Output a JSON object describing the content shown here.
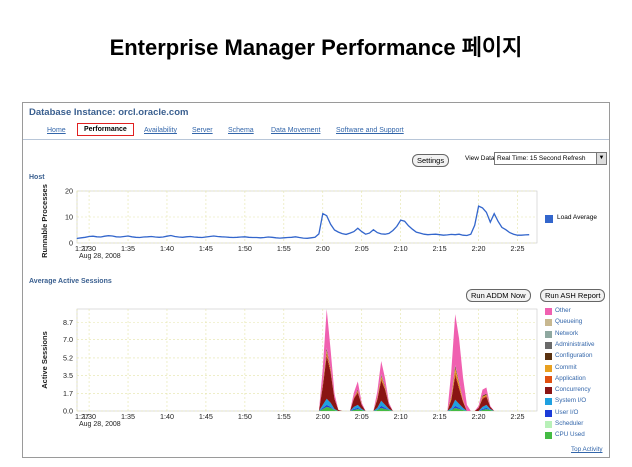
{
  "slide": {
    "title": "Enterprise Manager Performance 페이지"
  },
  "em": {
    "db_title": "Database Instance: orcl.oracle.com",
    "tabs": [
      {
        "label": "Home",
        "active": false
      },
      {
        "label": "Performance",
        "active": true
      },
      {
        "label": "Availability",
        "active": false
      },
      {
        "label": "Server",
        "active": false
      },
      {
        "label": "Schema",
        "active": false
      },
      {
        "label": "Data Movement",
        "active": false
      },
      {
        "label": "Software and Support",
        "active": false
      }
    ],
    "settings_label": "Settings",
    "view_data_label": "View Data",
    "view_data_value": "Real Time: 15 Second Refresh",
    "host_section_title": "Host",
    "aas_section_title": "Average Active Sessions",
    "run_addm_label": "Run ADDM Now",
    "run_ash_label": "Run ASH Report",
    "top_activity_label": "Top Activity",
    "colors": {
      "accent": "#3a5f8f",
      "link": "#3366aa",
      "active_tab_border": "#e02020"
    }
  },
  "chart_data": [
    {
      "type": "line",
      "title": "Host",
      "ylabel": "Runnable Processes",
      "ylim": [
        0,
        20
      ],
      "yticks": [
        "20",
        "10",
        "0"
      ],
      "xticks": [
        "1:27",
        "1:30",
        "1:35",
        "1:40",
        "1:45",
        "1:50",
        "1:55",
        "2:00",
        "2:05",
        "2:10",
        "2:15",
        "2:20",
        "2:25"
      ],
      "xsublabel": "Aug 28, 2008",
      "grid": true,
      "legend": "right",
      "series": [
        {
          "name": "Load Average",
          "color": "#3366cc",
          "x": [
            1.45,
            1.5,
            2,
            2.5,
            3,
            3.5,
            4,
            4.5,
            5,
            5.5,
            6,
            6.5,
            7,
            7.5,
            8,
            8.5,
            9,
            9.5,
            10,
            10.5,
            11,
            11.5,
            12,
            12.5,
            13,
            13.5,
            14,
            14.5,
            15,
            15.5,
            16,
            16.5,
            17,
            17.5,
            18,
            18.5,
            19,
            19.5,
            20,
            20.5,
            21,
            21.5,
            22,
            22.5,
            23,
            23.5,
            24,
            24.5,
            25,
            25.5,
            26,
            26.5,
            27,
            27.5,
            28,
            28.5,
            29,
            29.5,
            30,
            30.5,
            31,
            31.5,
            32,
            32.5,
            33,
            33.5,
            34,
            34.5,
            35,
            35.5,
            36,
            36.5,
            37,
            37.5,
            38,
            38.5,
            39,
            39.5,
            40,
            40.5,
            41,
            41.5,
            42,
            42.5,
            43,
            43.5,
            44,
            44.5,
            45,
            45.5,
            46,
            46.5,
            47,
            47.5,
            48,
            48.5,
            49,
            49.5,
            50,
            50.5,
            51,
            51.5,
            52,
            52.5,
            53,
            53.5,
            54,
            54.5,
            55,
            55.5,
            56,
            56.5,
            57,
            57.5,
            58,
            58.5,
            59,
            59.5
          ],
          "values": [
            1.6,
            1.8,
            2.0,
            2.2,
            2.5,
            2.6,
            2.4,
            2.3,
            2.6,
            2.8,
            2.7,
            2.4,
            2.3,
            2.5,
            2.7,
            2.4,
            2.2,
            2.1,
            2.3,
            2.4,
            2.5,
            2.3,
            2.2,
            2.3,
            2.6,
            2.9,
            2.5,
            2.3,
            2.2,
            2.4,
            2.5,
            2.3,
            2.2,
            2.1,
            2.3,
            2.5,
            2.7,
            2.5,
            2.4,
            2.3,
            2.2,
            2.1,
            2.2,
            2.3,
            2.4,
            2.2,
            2.1,
            2.1,
            2.0,
            2.1,
            2.3,
            2.2,
            2.0,
            1.9,
            2.0,
            2.1,
            2.2,
            2.4,
            2.1,
            1.9,
            1.8,
            2.0,
            2.2,
            3.5,
            11.3,
            10.5,
            7.2,
            5.0,
            4.2,
            3.6,
            3.3,
            3.8,
            4.4,
            5.7,
            4.4,
            3.4,
            3.8,
            5.1,
            4.0,
            3.5,
            3.4,
            3.7,
            4.8,
            6.4,
            8.8,
            8.4,
            6.6,
            5.3,
            4.2,
            3.8,
            3.4,
            3.2,
            3.3,
            3.4,
            3.2,
            3.0,
            3.1,
            3.3,
            3.2,
            3.4,
            3.0,
            2.9,
            3.4,
            6.8,
            14.2,
            13.5,
            11.8,
            8.0,
            11.3,
            8.4,
            6.0,
            5.1,
            4.0,
            3.4,
            3.0,
            3.0,
            3.1,
            3.2
          ]
        }
      ]
    },
    {
      "type": "area",
      "title": "Average Active Sessions",
      "ylabel": "Active Sessions",
      "ylim": [
        0,
        10
      ],
      "yticks": [
        "8.7",
        "7.0",
        "5.2",
        "3.5",
        "1.7",
        "0.0"
      ],
      "xticks": [
        "1:27",
        "1:30",
        "1:35",
        "1:40",
        "1:45",
        "1:50",
        "1:55",
        "2:00",
        "2:05",
        "2:10",
        "2:15",
        "2:20",
        "2:25"
      ],
      "xsublabel": "Aug 28, 2008",
      "grid": true,
      "legend": "right",
      "stacked": true,
      "x": [
        32.5,
        33,
        33.5,
        34,
        34.5,
        35,
        35.5,
        36,
        36.5,
        37,
        37.5,
        38,
        38.5,
        39,
        39.5,
        40,
        40.5,
        41,
        41.5,
        42,
        42.5,
        43,
        43.5,
        44,
        44.5,
        45,
        45.5,
        46,
        46.5,
        47,
        47.5,
        48,
        48.5,
        49,
        49.5,
        50,
        50.5,
        51,
        51.5,
        52,
        52.5,
        53,
        53.5,
        54,
        54.5,
        55,
        55.5,
        56,
        56.5,
        57,
        57.5,
        58,
        58.5,
        59
      ],
      "series": [
        {
          "name": "CPU Used",
          "color": "#44bb44",
          "values": [
            0,
            0.2,
            0.4,
            0.3,
            0.1,
            0,
            0,
            0,
            0,
            0.1,
            0.2,
            0.1,
            0,
            0,
            0,
            0.1,
            0.3,
            0.2,
            0.1,
            0,
            0,
            0,
            0,
            0,
            0,
            0,
            0,
            0,
            0,
            0,
            0,
            0,
            0,
            0,
            0.1,
            0.3,
            0.2,
            0.1,
            0,
            0,
            0,
            0,
            0.1,
            0.2,
            0.1,
            0,
            0,
            0,
            0,
            0,
            0,
            0,
            0,
            0
          ]
        },
        {
          "name": "Scheduler",
          "color": "#b8f0b8",
          "values": [
            0,
            0,
            0,
            0,
            0,
            0,
            0,
            0,
            0,
            0,
            0,
            0,
            0,
            0,
            0,
            0,
            0,
            0,
            0,
            0,
            0,
            0,
            0,
            0,
            0,
            0,
            0,
            0,
            0,
            0,
            0,
            0,
            0,
            0,
            0,
            0,
            0,
            0,
            0,
            0,
            0,
            0,
            0,
            0,
            0,
            0,
            0,
            0,
            0,
            0,
            0,
            0,
            0,
            0
          ]
        },
        {
          "name": "User I/O",
          "color": "#1c3cd8",
          "values": [
            0,
            0.1,
            0.2,
            0.1,
            0,
            0,
            0,
            0,
            0,
            0.1,
            0.1,
            0,
            0,
            0,
            0,
            0,
            0.2,
            0.1,
            0,
            0,
            0,
            0,
            0,
            0,
            0,
            0,
            0,
            0,
            0,
            0,
            0,
            0,
            0,
            0,
            0,
            0.2,
            0.1,
            0,
            0,
            0,
            0,
            0,
            0.1,
            0.1,
            0,
            0,
            0,
            0,
            0,
            0,
            0,
            0,
            0,
            0
          ]
        },
        {
          "name": "System I/O",
          "color": "#1fa0e0",
          "values": [
            0,
            0.3,
            0.6,
            0.4,
            0.1,
            0,
            0,
            0,
            0,
            0.2,
            0.3,
            0.1,
            0,
            0,
            0,
            0.2,
            0.5,
            0.3,
            0.1,
            0,
            0,
            0,
            0,
            0,
            0,
            0,
            0,
            0,
            0,
            0,
            0,
            0,
            0,
            0,
            0.2,
            0.6,
            0.4,
            0.2,
            0,
            0,
            0,
            0,
            0.2,
            0.3,
            0.1,
            0,
            0,
            0,
            0,
            0,
            0,
            0,
            0,
            0
          ]
        },
        {
          "name": "Concurrency",
          "color": "#8a1414",
          "values": [
            0,
            1.8,
            4.2,
            3.0,
            1.0,
            0.1,
            0,
            0,
            0,
            0.8,
            1.2,
            0.4,
            0,
            0,
            0,
            0.8,
            2.0,
            1.5,
            0.4,
            0,
            0,
            0,
            0,
            0,
            0,
            0,
            0,
            0,
            0,
            0,
            0,
            0,
            0,
            0,
            0.8,
            2.4,
            1.5,
            0.6,
            0,
            0,
            0,
            0.3,
            0.8,
            0.8,
            0.2,
            0,
            0,
            0,
            0,
            0,
            0,
            0,
            0,
            0
          ]
        },
        {
          "name": "Application",
          "color": "#e05010",
          "values": [
            0,
            0.1,
            0.3,
            0.2,
            0,
            0,
            0,
            0,
            0,
            0.1,
            0.1,
            0,
            0,
            0,
            0,
            0.1,
            0.2,
            0.1,
            0,
            0,
            0,
            0,
            0,
            0,
            0,
            0,
            0,
            0,
            0,
            0,
            0,
            0,
            0,
            0,
            0.1,
            0.3,
            0.2,
            0.1,
            0,
            0,
            0,
            0,
            0.1,
            0.1,
            0,
            0,
            0,
            0,
            0,
            0,
            0,
            0,
            0,
            0
          ]
        },
        {
          "name": "Commit",
          "color": "#e8a020",
          "values": [
            0,
            0.1,
            0.2,
            0.1,
            0,
            0,
            0,
            0,
            0,
            0,
            0.1,
            0,
            0,
            0,
            0,
            0.1,
            0.2,
            0.1,
            0,
            0,
            0,
            0,
            0,
            0,
            0,
            0,
            0,
            0,
            0,
            0,
            0,
            0,
            0,
            0,
            0.2,
            0.4,
            0.3,
            0.1,
            0,
            0,
            0,
            0,
            0.1,
            0.1,
            0,
            0,
            0,
            0,
            0,
            0,
            0,
            0,
            0,
            0
          ]
        },
        {
          "name": "Configuration",
          "color": "#5a3210",
          "values": [
            0,
            0.1,
            0.2,
            0.1,
            0,
            0,
            0,
            0,
            0,
            0,
            0.1,
            0,
            0,
            0,
            0,
            0,
            0.1,
            0.1,
            0,
            0,
            0,
            0,
            0,
            0,
            0,
            0,
            0,
            0,
            0,
            0,
            0,
            0,
            0,
            0,
            0.1,
            0.2,
            0.1,
            0,
            0,
            0,
            0,
            0,
            0.1,
            0.1,
            0,
            0,
            0,
            0,
            0,
            0,
            0,
            0,
            0,
            0
          ]
        },
        {
          "name": "Administrative",
          "color": "#6a6a6a",
          "values": [
            0,
            0,
            0,
            0,
            0,
            0,
            0,
            0,
            0,
            0,
            0,
            0,
            0,
            0,
            0,
            0,
            0,
            0,
            0,
            0,
            0,
            0,
            0,
            0,
            0,
            0,
            0,
            0,
            0,
            0,
            0,
            0,
            0,
            0,
            0,
            0,
            0,
            0,
            0,
            0,
            0,
            0,
            0,
            0,
            0,
            0,
            0,
            0,
            0,
            0,
            0,
            0,
            0,
            0
          ]
        },
        {
          "name": "Network",
          "color": "#8fa8a0",
          "values": [
            0,
            0,
            0.1,
            0,
            0,
            0,
            0,
            0,
            0,
            0,
            0,
            0,
            0,
            0,
            0,
            0,
            0.1,
            0,
            0,
            0,
            0,
            0,
            0,
            0,
            0,
            0,
            0,
            0,
            0,
            0,
            0,
            0,
            0,
            0,
            0,
            0.1,
            0.1,
            0,
            0,
            0,
            0,
            0,
            0,
            0,
            0,
            0,
            0,
            0,
            0,
            0,
            0,
            0,
            0,
            0
          ]
        },
        {
          "name": "Queueing",
          "color": "#c8b890",
          "values": [
            0,
            0,
            0,
            0,
            0,
            0,
            0,
            0,
            0,
            0,
            0,
            0,
            0,
            0,
            0,
            0,
            0,
            0,
            0,
            0,
            0,
            0,
            0,
            0,
            0,
            0,
            0,
            0,
            0,
            0,
            0,
            0,
            0,
            0,
            0,
            0,
            0,
            0,
            0,
            0,
            0,
            0,
            0,
            0,
            0,
            0,
            0,
            0,
            0,
            0,
            0,
            0,
            0,
            0
          ]
        },
        {
          "name": "Other",
          "color": "#f060b0",
          "values": [
            0,
            1.5,
            3.8,
            1.8,
            0.5,
            0,
            0,
            0,
            0,
            0.5,
            0.8,
            0.2,
            0,
            0,
            0,
            0.6,
            1.3,
            0.8,
            0.2,
            0,
            0,
            0,
            0,
            0,
            0,
            0,
            0,
            0,
            0,
            0,
            0,
            0,
            0,
            0,
            2.4,
            5.0,
            4.2,
            2.2,
            0.6,
            0,
            0,
            0.2,
            0.6,
            0.6,
            0.1,
            0,
            0,
            0,
            0,
            0,
            0,
            0,
            0,
            0
          ]
        }
      ]
    }
  ]
}
